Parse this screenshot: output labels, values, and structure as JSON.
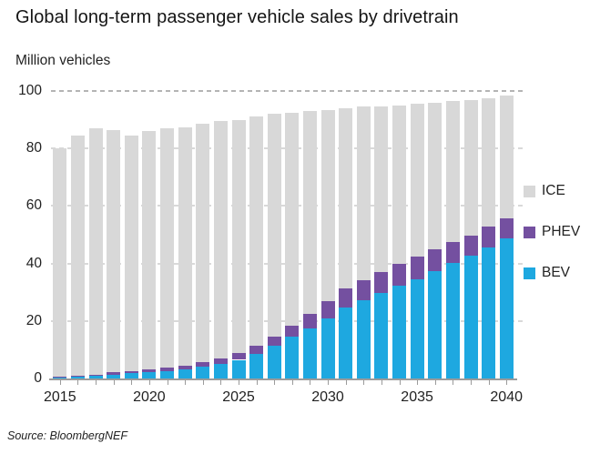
{
  "header": {
    "title": "Global long-term passenger vehicle sales by drivetrain",
    "unit_label": "Million vehicles"
  },
  "footer": {
    "source": "Source: BloombergNEF"
  },
  "chart_data": {
    "type": "bar",
    "stacked": true,
    "title": "Global long-term passenger vehicle sales by drivetrain",
    "ylabel": "Million vehicles",
    "xlabel": "",
    "ylim": [
      0,
      100
    ],
    "y_ticks": [
      0,
      20,
      40,
      60,
      80,
      100
    ],
    "grid": "horizontal-dashed",
    "categories": [
      2015,
      2016,
      2017,
      2018,
      2019,
      2020,
      2021,
      2022,
      2023,
      2024,
      2025,
      2026,
      2027,
      2028,
      2029,
      2030,
      2031,
      2032,
      2033,
      2034,
      2035,
      2036,
      2037,
      2038,
      2039,
      2040
    ],
    "x_tick_labels": [
      "2015",
      "2020",
      "2025",
      "2030",
      "2035",
      "2040"
    ],
    "series": [
      {
        "name": "BEV",
        "color": "#1ea8e0",
        "values": [
          0.2,
          0.5,
          0.9,
          1.4,
          1.8,
          2.2,
          2.7,
          3.3,
          4.1,
          5.2,
          6.5,
          8.5,
          11.3,
          14.5,
          17.4,
          21.0,
          24.6,
          27.2,
          29.7,
          32.3,
          34.6,
          37.2,
          40.1,
          42.6,
          45.5,
          48.7
        ]
      },
      {
        "name": "PHEV",
        "color": "#7450a0",
        "values": [
          0.3,
          0.4,
          0.5,
          0.7,
          0.9,
          1.0,
          1.1,
          1.3,
          1.5,
          1.9,
          2.3,
          2.8,
          3.3,
          3.9,
          5.0,
          6.0,
          6.9,
          7.0,
          7.3,
          7.5,
          7.8,
          7.8,
          7.3,
          7.1,
          7.4,
          7.1
        ]
      },
      {
        "name": "ICE",
        "color": "#d8d8d8",
        "values": [
          79.5,
          83.6,
          85.6,
          84.4,
          81.8,
          82.8,
          83.2,
          82.9,
          82.9,
          82.4,
          81.2,
          79.7,
          77.4,
          74.1,
          70.6,
          66.5,
          62.5,
          60.3,
          57.5,
          55.2,
          53.1,
          51.0,
          49.1,
          47.3,
          44.6,
          42.7
        ]
      }
    ],
    "legend": {
      "position": "right",
      "items": [
        "ICE",
        "PHEV",
        "BEV"
      ]
    }
  }
}
